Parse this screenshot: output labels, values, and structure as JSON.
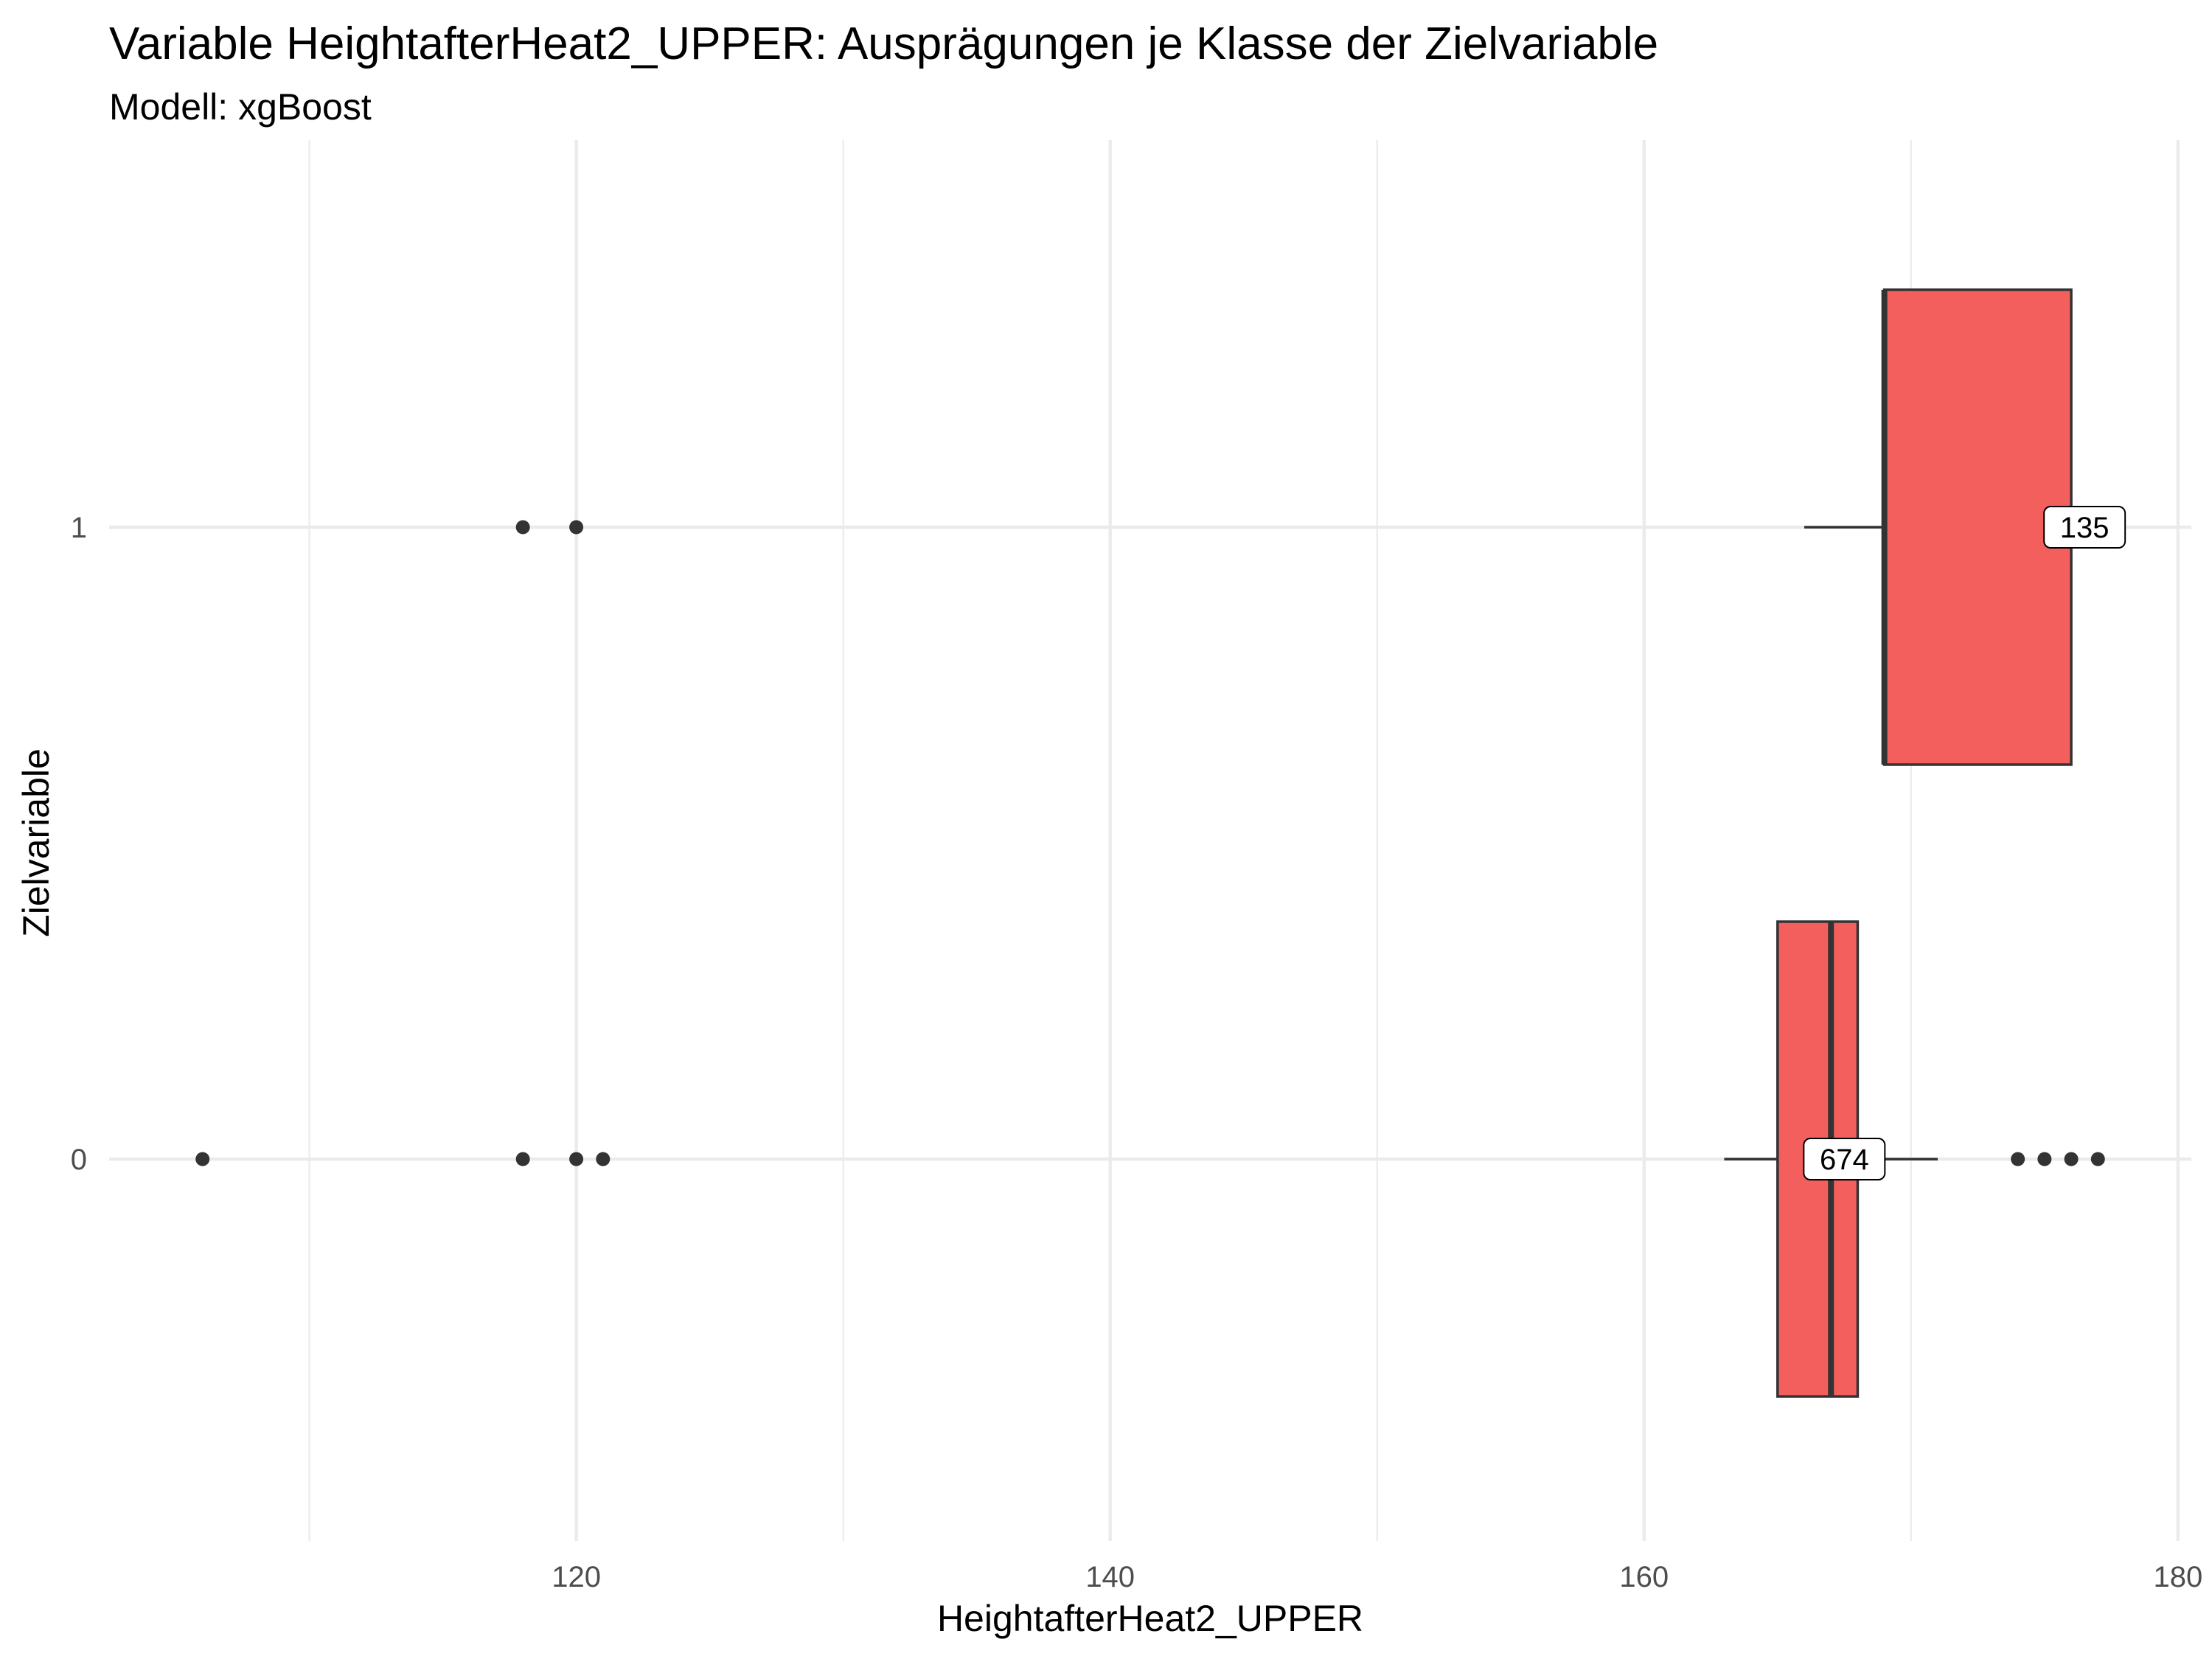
{
  "chart_data": {
    "type": "boxplot",
    "orientation": "horizontal",
    "title": "Variable HeightafterHeat2_UPPER: Ausprägungen je Klasse der Zielvariable",
    "subtitle": "Modell: xgBoost",
    "xlabel": "HeightafterHeat2_UPPER",
    "ylabel": "Zielvariable",
    "xlim": [
      102.5,
      180.5
    ],
    "x_ticks": [
      120,
      140,
      160,
      180
    ],
    "x_minor_ticks": [
      110,
      130,
      150,
      170
    ],
    "categories": [
      "0",
      "1"
    ],
    "fill_color": "#F25F5C",
    "grid": true,
    "boxes": [
      {
        "category": "0",
        "whisker_low": 163,
        "q1": 165,
        "median": 167,
        "q3": 168,
        "whisker_high": 171,
        "outliers": [
          106,
          118,
          120,
          121,
          174,
          175,
          176,
          177
        ],
        "count_label": "674",
        "label_x": 167.5
      },
      {
        "category": "1",
        "whisker_low": 166,
        "q1": 169,
        "median": 169,
        "q3": 176,
        "whisker_high": 176,
        "outliers": [
          118,
          120
        ],
        "count_label": "135",
        "label_x": 176.5
      }
    ]
  }
}
